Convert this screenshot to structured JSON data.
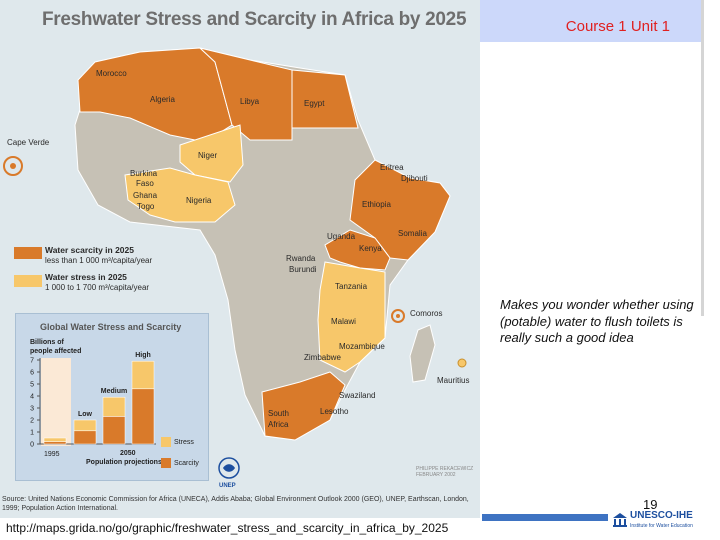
{
  "map": {
    "title": "Freshwater Stress and Scarcity in Africa by 2025",
    "countries": {
      "morocco": "Morocco",
      "algeria": "Algeria",
      "libya": "Libya",
      "egypt": "Egypt",
      "cape_verde": "Cape Verde",
      "niger": "Niger",
      "burkina": "Burkina",
      "faso": "Faso",
      "ghana": "Ghana",
      "togo": "Togo",
      "nigeria": "Nigeria",
      "eritrea": "Eritrea",
      "djibouti": "Djibouti",
      "ethiopia": "Ethiopia",
      "somalia": "Somalia",
      "uganda": "Uganda",
      "kenya": "Kenya",
      "rwanda": "Rwanda",
      "burundi": "Burundi",
      "tanzania": "Tanzania",
      "comoros": "Comoros",
      "malawi": "Malawi",
      "mozambique": "Mozambique",
      "zimbabwe": "Zimbabwe",
      "mauritius": "Mauritius",
      "swaziland": "Swaziland",
      "south": "South",
      "africa": "Africa",
      "lesotho": "Lesotho"
    },
    "legend": {
      "scarcity_title": "Water scarcity in 2025",
      "scarcity_sub": "less than 1 000 m³/capita/year",
      "stress_title": "Water stress in 2025",
      "stress_sub": "1 000 to 1 700 m³/capita/year"
    },
    "colors": {
      "scarcity": "#d97a2a",
      "stress": "#f7c76a",
      "land": "#c6c1b5",
      "sea": "#dfe8ec"
    },
    "credit_line1": "PHILIPPE REKACEWICZ",
    "credit_line2": "FEBRUARY 2002",
    "unep_label": "UNEP",
    "source": "Source: United Nations Economic Commission for Africa (UNECA), Addis Ababa; Global Environment Outlook 2000 (GEO), UNEP, Earthscan, London, 1999; Population Action International."
  },
  "inset": {
    "title": "Global Water Stress and Scarcity",
    "ylabel_line1": "Billions of",
    "ylabel_line2": "people affected",
    "y_ticks": [
      "7",
      "6",
      "5",
      "4",
      "3",
      "2",
      "1",
      "0"
    ],
    "x_label_1995": "1995",
    "x_label_2050": "2050",
    "x_sub": "Population projections",
    "legend_stress": "Stress",
    "legend_scarcity": "Scarcity"
  },
  "chart_data": {
    "type": "bar",
    "title": "Global Water Stress and Scarcity",
    "ylabel": "Billions of people affected",
    "ylim": [
      0,
      7
    ],
    "categories": [
      "1995",
      "Low",
      "Medium",
      "High"
    ],
    "series": [
      {
        "name": "Scarcity",
        "values": [
          0.2,
          1.1,
          2.3,
          4.6
        ]
      },
      {
        "name": "Stress",
        "values": [
          0.3,
          0.9,
          1.6,
          2.3
        ]
      }
    ]
  },
  "slide": {
    "course": "Course 1 Unit 1",
    "note": "Makes you wonder whether using (potable) water to flush toilets is really such a good idea",
    "page_number": "19",
    "url": "http://maps.grida.no/go/graphic/freshwater_stress_and_scarcity_in_africa_by_2025",
    "logo_name": "UNESCO-IHE",
    "logo_sub": "Institute for Water Education"
  }
}
